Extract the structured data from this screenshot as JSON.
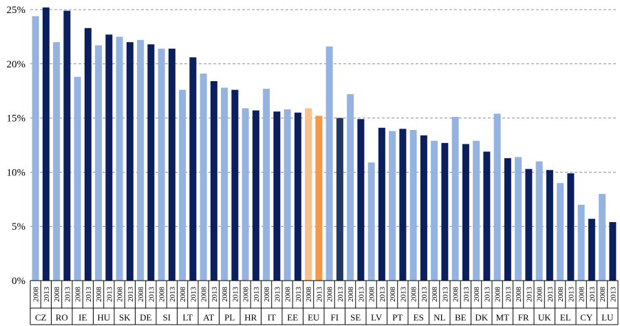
{
  "colors": {
    "bar_2008": "#95b3e0",
    "bar_2013": "#0b1f5c",
    "eu_2008": "#f8c08c",
    "eu_2013": "#f79646",
    "fi_2013": "#1f3864"
  },
  "chart_data": {
    "type": "bar",
    "title": "",
    "xlabel": "",
    "ylabel": "",
    "ylim": [
      0,
      25
    ],
    "yticks": [
      "0%",
      "5%",
      "10%",
      "15%",
      "20%",
      "25%"
    ],
    "ytick_values": [
      0,
      5,
      10,
      15,
      20,
      25
    ],
    "grid": true,
    "sub_categories": [
      "2008",
      "2013"
    ],
    "categories": [
      "CZ",
      "RO",
      "IE",
      "HU",
      "SK",
      "DE",
      "SI",
      "LT",
      "AT",
      "PL",
      "HR",
      "IT",
      "EE",
      "EU",
      "FI",
      "SE",
      "LV",
      "PT",
      "ES",
      "NL",
      "BE",
      "DK",
      "MT",
      "FR",
      "UK",
      "EL",
      "CY",
      "LU"
    ],
    "series": [
      {
        "year": "2008",
        "values": [
          24.4,
          22.0,
          18.8,
          21.7,
          22.5,
          22.2,
          21.4,
          17.6,
          19.1,
          17.8,
          15.9,
          17.7,
          15.8,
          15.9,
          21.6,
          17.2,
          10.9,
          13.8,
          13.9,
          12.9,
          15.1,
          12.9,
          15.4,
          11.4,
          11.0,
          9.0,
          7.0,
          8.0
        ]
      },
      {
        "year": "2013",
        "values": [
          25.2,
          24.9,
          23.3,
          22.7,
          22.0,
          21.8,
          21.4,
          20.6,
          18.4,
          17.6,
          15.7,
          15.6,
          15.5,
          15.2,
          15.0,
          14.9,
          14.1,
          14.0,
          13.4,
          12.7,
          12.6,
          11.9,
          11.3,
          10.3,
          10.2,
          9.9,
          5.7,
          5.4
        ]
      }
    ]
  }
}
